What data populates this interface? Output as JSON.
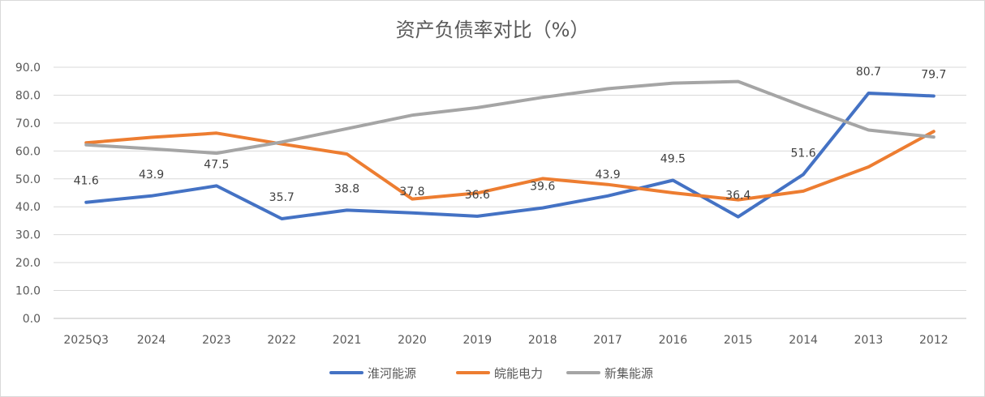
{
  "chart_data": {
    "type": "line",
    "title": "资产负债率对比（%）",
    "xlabel": "",
    "ylabel": "",
    "ylim": [
      0,
      90
    ],
    "yticks": [
      "0.0",
      "10.0",
      "20.0",
      "30.0",
      "40.0",
      "50.0",
      "60.0",
      "70.0",
      "80.0",
      "90.0"
    ],
    "grid": true,
    "legend_position": "bottom",
    "categories": [
      "2025Q3",
      "2024",
      "2023",
      "2022",
      "2021",
      "2020",
      "2019",
      "2018",
      "2017",
      "2016",
      "2015",
      "2014",
      "2013",
      "2012"
    ],
    "series": [
      {
        "name": "淮河能源",
        "color": "#4472C4",
        "values": [
          41.6,
          43.9,
          47.5,
          35.7,
          38.8,
          37.8,
          36.6,
          39.6,
          43.9,
          49.5,
          36.4,
          51.6,
          80.7,
          79.7
        ],
        "labels": [
          "41.6",
          "43.9",
          "47.5",
          "35.7",
          "38.8",
          "37.8",
          "36.6",
          "39.6",
          "43.9",
          "49.5",
          "36.4",
          "51.6",
          "80.7",
          "79.7"
        ]
      },
      {
        "name": "皖能电力",
        "color": "#ED7D31",
        "values": [
          62.9,
          64.9,
          66.4,
          62.5,
          58.9,
          42.8,
          44.9,
          50.1,
          48.0,
          45.0,
          42.5,
          45.6,
          54.3,
          67.0
        ]
      },
      {
        "name": "新集能源",
        "color": "#A5A5A5",
        "values": [
          62.2,
          60.8,
          59.2,
          63.2,
          68.0,
          72.8,
          75.5,
          79.2,
          82.3,
          84.3,
          84.9,
          76.0,
          67.5,
          65.0
        ]
      }
    ]
  }
}
